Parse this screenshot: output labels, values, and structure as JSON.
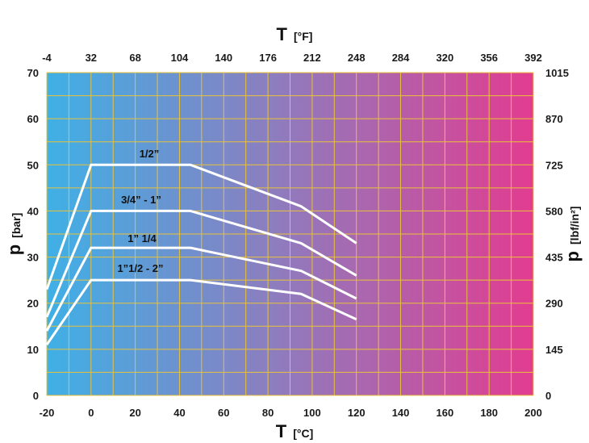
{
  "chart_data": {
    "type": "line",
    "x_bottom": {
      "symbol": "T",
      "unit": "[°C]",
      "range": [
        -20,
        200
      ],
      "ticks": [
        "-20",
        "0",
        "20",
        "40",
        "60",
        "80",
        "100",
        "120",
        "140",
        "160",
        "180",
        "200"
      ]
    },
    "x_top": {
      "symbol": "T",
      "unit": "[°F]",
      "ticks": [
        "-4",
        "32",
        "68",
        "104",
        "140",
        "176",
        "212",
        "248",
        "284",
        "320",
        "356",
        "392"
      ]
    },
    "y_left": {
      "symbol": "p",
      "unit": "[bar]",
      "range": [
        0,
        70
      ],
      "ticks": [
        "0",
        "10",
        "20",
        "30",
        "40",
        "50",
        "60",
        "70"
      ]
    },
    "y_right": {
      "symbol": "p",
      "unit": "[lbf/in²]",
      "ticks": [
        "0",
        "145",
        "290",
        "435",
        "580",
        "725",
        "870",
        "1015"
      ]
    },
    "grid": true,
    "series": [
      {
        "name": "1/2”",
        "x": [
          -20,
          0,
          45,
          95,
          120
        ],
        "y": [
          23,
          50,
          50,
          41,
          33
        ]
      },
      {
        "name": "3/4” - 1”",
        "x": [
          -20,
          0,
          45,
          95,
          120
        ],
        "y": [
          17,
          40,
          40,
          33,
          26
        ]
      },
      {
        "name": "1” 1/4",
        "x": [
          -20,
          0,
          45,
          95,
          120
        ],
        "y": [
          14,
          32,
          32,
          27,
          21
        ]
      },
      {
        "name": "1”1/2 - 2”",
        "x": [
          -20,
          0,
          45,
          95,
          120
        ],
        "y": [
          11,
          25,
          25,
          22,
          16.5
        ]
      }
    ]
  },
  "colors": {
    "gradient_start": "#3fb0e6",
    "gradient_mid": "#8a7fc0",
    "gradient_end": "#e23c90",
    "grid": "#e8c23a",
    "curve": "#ffffff"
  }
}
